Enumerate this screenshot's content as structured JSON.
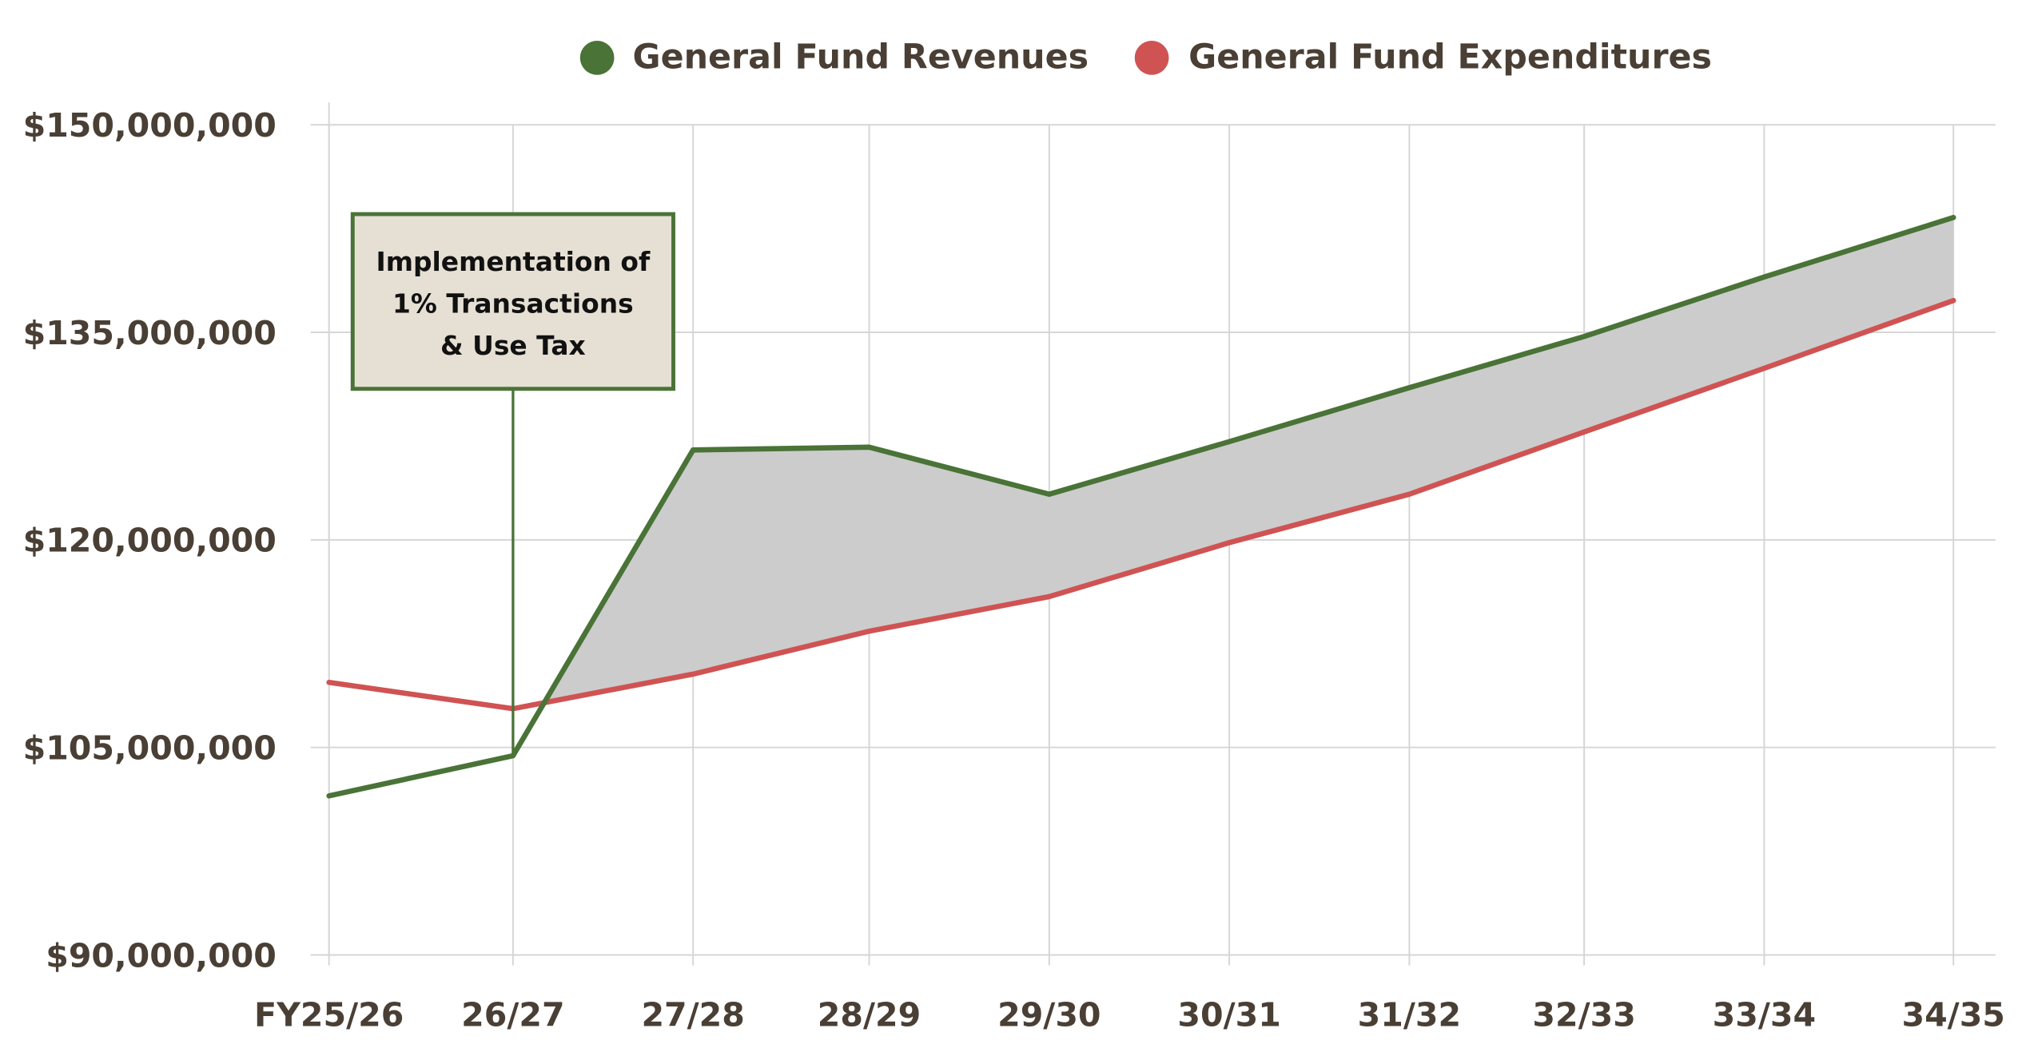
{
  "chart_data": {
    "type": "line",
    "title": "",
    "xlabel": "",
    "ylabel": "",
    "categories": [
      "FY25/26",
      "26/27",
      "27/28",
      "28/29",
      "29/30",
      "30/31",
      "31/32",
      "32/33",
      "33/34",
      "34/35"
    ],
    "series": [
      {
        "name": "General Fund Revenues",
        "color": "#4a7337",
        "values": [
          101500000,
          104400000,
          126500000,
          126700000,
          123300000,
          127100000,
          131000000,
          134700000,
          139000000,
          143300000
        ]
      },
      {
        "name": "General Fund Expenditures",
        "color": "#d05353",
        "values": [
          109700000,
          107800000,
          110300000,
          113400000,
          115900000,
          119800000,
          123300000,
          127800000,
          132400000,
          137300000
        ]
      }
    ],
    "ylim": [
      90000000,
      150000000
    ],
    "yticks": [
      90000000,
      105000000,
      120000000,
      135000000,
      150000000
    ],
    "ytick_labels": [
      "$90,000,000",
      "$105,000,000",
      "$120,000,000",
      "$135,000,000",
      "$150,000,000"
    ],
    "grid": true,
    "legend": "top-center",
    "surplus_fill_color": "#cccccc",
    "annotation": {
      "category": "26/27",
      "lines": [
        "Implementation of",
        "1% Transactions",
        "& Use Tax"
      ],
      "fill": "#e6e0d4",
      "border": "#4a7337"
    }
  }
}
